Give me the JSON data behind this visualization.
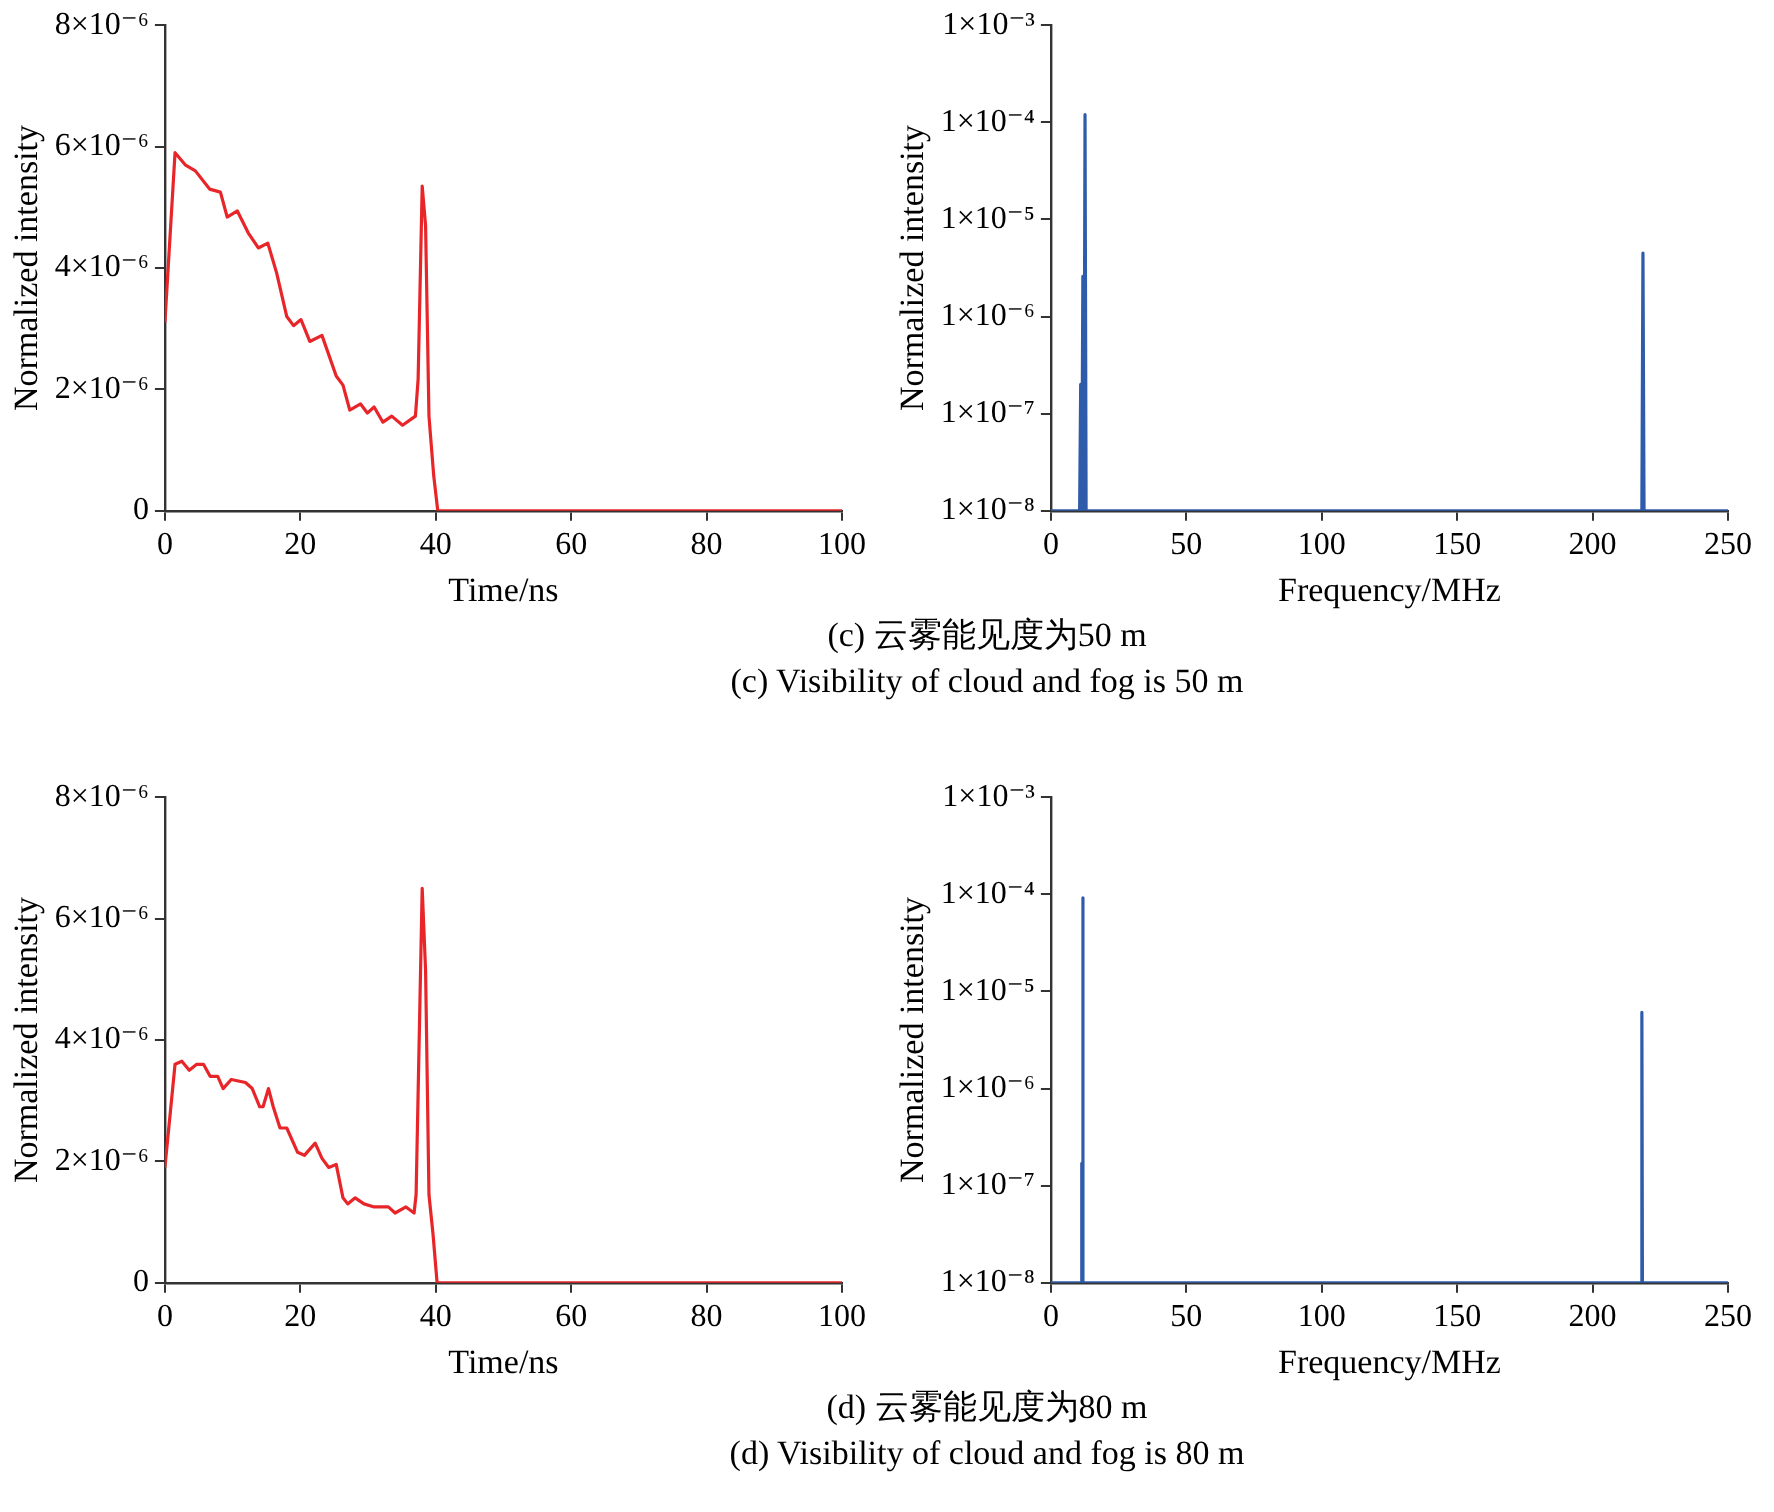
{
  "chart_data": [
    {
      "type": "line",
      "xlabel": "Time/ns",
      "ylabel": "Normalized intensity",
      "xlim": [
        0,
        100
      ],
      "xticks": [
        0,
        20,
        40,
        60,
        80,
        100
      ],
      "ylim": [
        0,
        8e-06
      ],
      "yticks": [
        0,
        {
          "value": 2e-06,
          "label": "2×10⁻⁶"
        },
        {
          "value": 4e-06,
          "label": "4×10⁻⁶"
        },
        {
          "value": 6e-06,
          "label": "6×10⁻⁶"
        },
        {
          "value": 8e-06,
          "label": "8×10⁻⁶"
        }
      ],
      "grid": false,
      "legend": false,
      "marker": "none",
      "line_style": "solid",
      "annotations": [
        "(c) 云雾能见度为50 m",
        "(c) Visibility of cloud and fog is 50 m"
      ],
      "series": [
        {
          "color": "#e8262a",
          "x": [
            0,
            1.5,
            3,
            4.5,
            6.6,
            8.2,
            9.2,
            10.7,
            12.3,
            13.8,
            15.2,
            16.5,
            18,
            19,
            20.1,
            21.4,
            23.2,
            25.3,
            26.3,
            27.3,
            28.9,
            29.9,
            30.9,
            32.2,
            33.5,
            35.1,
            37,
            37.4,
            38,
            38.5,
            39,
            39.7,
            40.3,
            50,
            60,
            70,
            80,
            90,
            100
          ],
          "values": [
            3.1e-06,
            5.9e-06,
            5.7e-06,
            5.6e-06,
            5.3e-06,
            5.25e-06,
            4.84e-06,
            4.94e-06,
            4.58e-06,
            4.33e-06,
            4.41e-06,
            3.92e-06,
            3.2e-06,
            3.05e-06,
            3.15e-06,
            2.79e-06,
            2.89e-06,
            2.22e-06,
            2.07e-06,
            1.66e-06,
            1.76e-06,
            1.61e-06,
            1.71e-06,
            1.46e-06,
            1.56e-06,
            1.41e-06,
            1.56e-06,
            2.17e-06,
            5.35e-06,
            4.7e-06,
            1.56e-06,
            5.8e-07,
            0,
            0,
            0,
            0,
            0,
            0,
            0
          ]
        }
      ]
    },
    {
      "type": "line",
      "xlabel": "Frequency/MHz",
      "ylabel": "Normalized intensity",
      "log": "y",
      "xlim": [
        0,
        250
      ],
      "xticks": [
        0,
        50,
        100,
        150,
        200,
        250
      ],
      "ylim": [
        1e-08,
        0.001
      ],
      "yticks": [
        {
          "value": 1e-08,
          "label": "1×10⁻⁸"
        },
        {
          "value": 1e-07,
          "label": "1×10⁻⁷"
        },
        {
          "value": 1e-06,
          "label": "1×10⁻⁶"
        },
        {
          "value": 1e-05,
          "label": "1×10⁻⁵"
        },
        {
          "value": 0.0001,
          "label": "1×10⁻⁴"
        },
        {
          "value": 0.001,
          "label": "1×10⁻³"
        }
      ],
      "grid": false,
      "legend": false,
      "marker": "none",
      "line_style": "solid",
      "series": [
        {
          "color": "#2f5caa",
          "x": [
            0,
            10.6,
            11,
            11.4,
            11.8,
            12.2,
            12.6,
            13,
            218.2,
            218.6,
            219,
            250
          ],
          "values": [
            1e-08,
            1e-08,
            2e-07,
            1e-08,
            2.6e-06,
            1e-08,
            0.00012,
            1e-08,
            1e-08,
            4.5e-06,
            1e-08,
            1e-08
          ]
        }
      ]
    },
    {
      "type": "line",
      "xlabel": "Time/ns",
      "ylabel": "Normalized intensity",
      "xlim": [
        0,
        100
      ],
      "xticks": [
        0,
        20,
        40,
        60,
        80,
        100
      ],
      "ylim": [
        0,
        8e-06
      ],
      "yticks": [
        0,
        {
          "value": 2e-06,
          "label": "2×10⁻⁶"
        },
        {
          "value": 4e-06,
          "label": "4×10⁻⁶"
        },
        {
          "value": 6e-06,
          "label": "6×10⁻⁶"
        },
        {
          "value": 8e-06,
          "label": "8×10⁻⁶"
        }
      ],
      "grid": false,
      "legend": false,
      "marker": "none",
      "line_style": "solid",
      "annotations": [
        "(d) 云雾能见度为80 m",
        "(d) Visibility of cloud and fog is 80 m"
      ],
      "series": [
        {
          "color": "#e8262a",
          "x": [
            0,
            1.5,
            2.5,
            3.6,
            4.7,
            5.7,
            6.7,
            7.8,
            8.6,
            9.8,
            11.9,
            12.9,
            14,
            14.5,
            15.3,
            16,
            17,
            18,
            19.6,
            20.6,
            22.2,
            23.2,
            24.2,
            25.3,
            26.3,
            27,
            28.1,
            29.4,
            30.9,
            33,
            34,
            35.6,
            36.8,
            37.1,
            38,
            38.5,
            39,
            39.6,
            40.2,
            50,
            60,
            70,
            80,
            90,
            100
          ],
          "values": [
            1.9e-06,
            3.6e-06,
            3.65e-06,
            3.5e-06,
            3.6e-06,
            3.6e-06,
            3.4e-06,
            3.4e-06,
            3.2e-06,
            3.35e-06,
            3.3e-06,
            3.2e-06,
            2.9e-06,
            2.9e-06,
            3.2e-06,
            2.9e-06,
            2.55e-06,
            2.55e-06,
            2.15e-06,
            2.1e-06,
            2.3e-06,
            2.05e-06,
            1.9e-06,
            1.95e-06,
            1.4e-06,
            1.3e-06,
            1.4e-06,
            1.3e-06,
            1.25e-06,
            1.25e-06,
            1.15e-06,
            1.25e-06,
            1.15e-06,
            1.45e-06,
            6.5e-06,
            5.15e-06,
            1.45e-06,
            8e-07,
            0,
            0,
            0,
            0,
            0,
            0,
            0
          ]
        }
      ]
    },
    {
      "type": "line",
      "xlabel": "Frequency/MHz",
      "ylabel": "Normalized intensity",
      "log": "y",
      "xlim": [
        0,
        250
      ],
      "xticks": [
        0,
        50,
        100,
        150,
        200,
        250
      ],
      "ylim": [
        1e-08,
        0.001
      ],
      "yticks": [
        {
          "value": 1e-08,
          "label": "1×10⁻⁸"
        },
        {
          "value": 1e-07,
          "label": "1×10⁻⁷"
        },
        {
          "value": 1e-06,
          "label": "1×10⁻⁶"
        },
        {
          "value": 1e-05,
          "label": "1×10⁻⁵"
        },
        {
          "value": 0.0001,
          "label": "1×10⁻⁴"
        },
        {
          "value": 0.001,
          "label": "1×10⁻³"
        }
      ],
      "grid": false,
      "legend": false,
      "marker": "none",
      "line_style": "solid",
      "series": [
        {
          "color": "#2f5caa",
          "x": [
            0,
            11.2,
            11.4,
            11.6,
            11.7,
            11.8,
            12,
            218,
            218.2,
            218.4,
            250
          ],
          "values": [
            1e-08,
            1e-08,
            1.7e-07,
            1e-08,
            9.2e-05,
            1e-08,
            1e-08,
            1e-08,
            6.1e-06,
            1e-08,
            1e-08
          ]
        }
      ]
    }
  ]
}
